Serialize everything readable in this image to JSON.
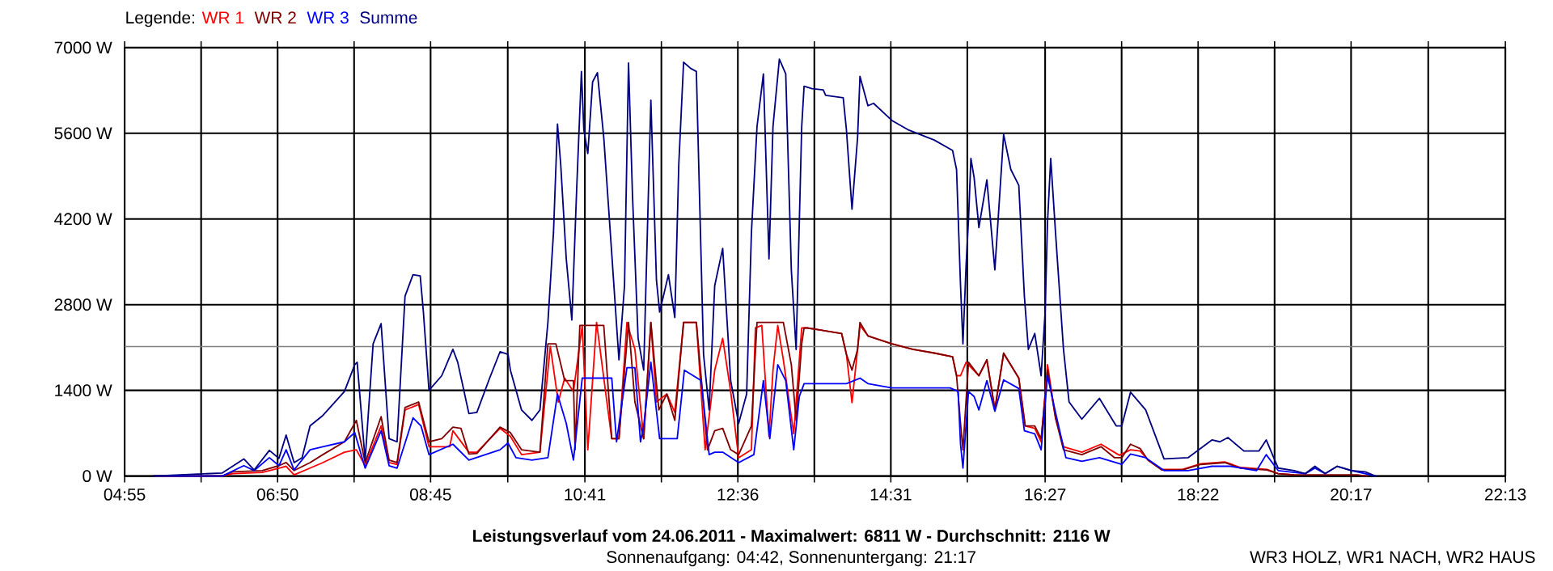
{
  "chart_data": {
    "type": "line",
    "title": "Leistungsverlauf vom 24.06.2011 - Maximalwert: 6811 W - Durchschnitt: 2116 W",
    "subtitle": "Sonnenaufgang: 04:42, Sonnenuntergang: 21:17",
    "annotations": [
      "WR3 HOLZ, WR1 NACH, WR2 HAUS"
    ],
    "legend_title": "Legende:",
    "legend": "top left",
    "grid": true,
    "marker": "none",
    "xlim": [
      4.9167,
      22.2167
    ],
    "ylim": [
      0,
      7000
    ],
    "xticks": [
      {
        "value": 4.9167,
        "label": "04:55"
      },
      {
        "value": 5.875,
        "label": null
      },
      {
        "value": 6.8333,
        "label": "06:50"
      },
      {
        "value": 7.7917,
        "label": null
      },
      {
        "value": 8.75,
        "label": "08:45"
      },
      {
        "value": 9.7167,
        "label": null
      },
      {
        "value": 10.6833,
        "label": "10:41"
      },
      {
        "value": 11.6417,
        "label": null
      },
      {
        "value": 12.6,
        "label": "12:36"
      },
      {
        "value": 13.5583,
        "label": null
      },
      {
        "value": 14.5167,
        "label": "14:31"
      },
      {
        "value": 15.475,
        "label": null
      },
      {
        "value": 16.45,
        "label": "16:27"
      },
      {
        "value": 17.4083,
        "label": null
      },
      {
        "value": 18.3667,
        "label": "18:22"
      },
      {
        "value": 19.325,
        "label": null
      },
      {
        "value": 20.2833,
        "label": "20:17"
      },
      {
        "value": 21.25,
        "label": null
      },
      {
        "value": 22.2167,
        "label": "22:13"
      }
    ],
    "yticks": [
      {
        "value": 0,
        "label": "0 W"
      },
      {
        "value": 1400,
        "label": "1400 W"
      },
      {
        "value": 2800,
        "label": "2800 W"
      },
      {
        "value": 4200,
        "label": "4200 W"
      },
      {
        "value": 5600,
        "label": "5600 W"
      },
      {
        "value": 7000,
        "label": "7000 W"
      }
    ],
    "ref_lines": [
      {
        "axis": "y",
        "value": 2116,
        "color": "#808080"
      }
    ],
    "series": [
      {
        "name": "WR 1",
        "color": "#ff0000",
        "x": [
          5.27,
          6.14,
          6.27,
          6.64,
          6.85,
          6.94,
          7.04,
          7.24,
          7.4,
          7.67,
          7.82,
          7.93,
          8.13,
          8.23,
          8.33,
          8.43,
          8.6,
          8.73,
          8.99,
          9.03,
          9.23,
          9.33,
          9.62,
          9.75,
          9.89,
          10.12,
          10.25,
          10.35,
          10.43,
          10.54,
          10.65,
          10.72,
          10.83,
          10.95,
          11.02,
          11.11,
          11.21,
          11.31,
          11.42,
          11.51,
          11.58,
          11.71,
          11.81,
          11.92,
          12.08,
          12.19,
          12.31,
          12.41,
          12.51,
          12.61,
          12.77,
          12.82,
          12.9,
          12.99,
          13.04,
          13.1,
          13.17,
          13.3,
          13.4,
          13.47,
          13.9,
          13.96,
          14.03,
          14.1,
          14.13,
          14.23,
          14.53,
          14.79,
          15.06,
          15.29,
          15.34,
          15.39,
          15.46,
          15.62,
          15.72,
          15.82,
          15.93,
          16.12,
          16.2,
          16.32,
          16.4,
          16.48,
          16.58,
          16.68,
          16.91,
          17.15,
          17.38,
          17.52,
          17.64,
          17.74,
          17.91,
          18.17,
          18.4,
          18.7,
          18.9,
          19.23,
          19.37,
          19.57
        ],
        "values": [
          0,
          0,
          40,
          60,
          130,
          160,
          20,
          130,
          220,
          390,
          430,
          170,
          820,
          220,
          190,
          1080,
          1170,
          480,
          480,
          740,
          390,
          390,
          780,
          650,
          350,
          390,
          2120,
          1210,
          1600,
          1380,
          2460,
          430,
          2510,
          1300,
          610,
          610,
          2510,
          2070,
          610,
          2510,
          1210,
          1340,
          1040,
          2510,
          2510,
          430,
          1730,
          2250,
          1380,
          300,
          430,
          2420,
          2460,
          650,
          1730,
          2460,
          1900,
          690,
          2420,
          2420,
          2330,
          1990,
          1200,
          2070,
          2460,
          2290,
          2160,
          2070,
          2010,
          1950,
          1640,
          1640,
          1860,
          1640,
          1900,
          1100,
          2000,
          1600,
          820,
          780,
          560,
          1820,
          950,
          480,
          390,
          520,
          340,
          430,
          410,
          260,
          110,
          110,
          200,
          230,
          140,
          110,
          40,
          20
        ]
      },
      {
        "name": "WR 2",
        "color": "#800000",
        "x": [
          5.27,
          6.14,
          6.27,
          6.64,
          6.85,
          6.94,
          7.04,
          7.24,
          7.4,
          7.67,
          7.82,
          7.93,
          8.13,
          8.23,
          8.33,
          8.43,
          8.6,
          8.73,
          8.89,
          9.03,
          9.13,
          9.23,
          9.33,
          9.62,
          9.75,
          9.89,
          10.12,
          10.22,
          10.32,
          10.43,
          10.54,
          10.56,
          10.62,
          10.92,
          11.02,
          11.11,
          11.23,
          11.31,
          11.42,
          11.51,
          11.61,
          11.71,
          11.81,
          11.92,
          12.08,
          12.22,
          12.31,
          12.41,
          12.51,
          12.61,
          12.77,
          12.84,
          13.17,
          13.27,
          13.33,
          13.4,
          13.43,
          13.47,
          13.9,
          13.96,
          14.03,
          14.1,
          14.13,
          14.23,
          14.53,
          14.79,
          15.06,
          15.29,
          15.34,
          15.39,
          15.42,
          15.49,
          15.62,
          15.72,
          15.82,
          15.93,
          16.12,
          16.2,
          16.32,
          16.4,
          16.48,
          16.58,
          16.68,
          16.91,
          17.15,
          17.32,
          17.41,
          17.52,
          17.64,
          17.74,
          17.91,
          18.17,
          18.4,
          18.7,
          18.9,
          19.23,
          19.37,
          19.57,
          19.9,
          20.36,
          20.49
        ],
        "values": [
          0,
          0,
          70,
          90,
          170,
          220,
          90,
          220,
          350,
          560,
          910,
          220,
          970,
          260,
          220,
          1120,
          1210,
          560,
          610,
          800,
          780,
          360,
          370,
          800,
          710,
          430,
          390,
          2160,
          2160,
          1560,
          1560,
          430,
          2460,
          2460,
          610,
          610,
          2510,
          1210,
          610,
          2510,
          1080,
          1340,
          910,
          2510,
          2510,
          430,
          740,
          780,
          430,
          350,
          820,
          2510,
          2510,
          1820,
          910,
          2160,
          2420,
          2420,
          2330,
          1990,
          1730,
          2070,
          2510,
          2290,
          2160,
          2070,
          2010,
          1950,
          1640,
          860,
          430,
          1860,
          1640,
          1900,
          1080,
          2010,
          1600,
          820,
          820,
          610,
          1730,
          950,
          430,
          350,
          480,
          300,
          300,
          520,
          450,
          260,
          100,
          100,
          190,
          220,
          130,
          100,
          40,
          20,
          20,
          20,
          0
        ]
      },
      {
        "name": "WR 3",
        "color": "#0000ff",
        "x": [
          5.27,
          6.14,
          6.41,
          6.54,
          6.73,
          6.85,
          6.94,
          7.04,
          7.24,
          7.4,
          7.67,
          7.8,
          7.93,
          8.13,
          8.23,
          8.33,
          8.53,
          8.63,
          8.73,
          9.03,
          9.23,
          9.62,
          9.72,
          9.82,
          10.02,
          10.22,
          10.34,
          10.45,
          10.54,
          10.65,
          11.02,
          11.08,
          11.21,
          11.31,
          11.38,
          11.42,
          11.51,
          11.62,
          11.84,
          11.93,
          12.14,
          12.24,
          12.31,
          12.41,
          12.61,
          12.8,
          12.92,
          13.0,
          13.1,
          13.2,
          13.3,
          13.37,
          13.43,
          13.67,
          13.96,
          14.13,
          14.23,
          14.53,
          15.26,
          15.36,
          15.39,
          15.42,
          15.49,
          15.56,
          15.62,
          15.72,
          15.82,
          15.93,
          16.12,
          16.19,
          16.32,
          16.4,
          16.48,
          16.58,
          16.71,
          16.91,
          17.13,
          17.41,
          17.52,
          17.71,
          17.94,
          18.24,
          18.54,
          18.77,
          19.1,
          19.22,
          19.37,
          19.71,
          19.83,
          19.96,
          20.11,
          20.29,
          20.46,
          20.59
        ],
        "values": [
          0,
          0,
          170,
          90,
          300,
          170,
          430,
          100,
          430,
          480,
          560,
          710,
          130,
          740,
          170,
          130,
          950,
          820,
          350,
          520,
          260,
          430,
          540,
          300,
          260,
          300,
          1340,
          860,
          260,
          1600,
          1600,
          560,
          1770,
          1770,
          560,
          820,
          1860,
          610,
          610,
          1730,
          1560,
          350,
          390,
          390,
          220,
          350,
          1560,
          610,
          1820,
          1560,
          430,
          1300,
          1510,
          1510,
          1510,
          1600,
          1510,
          1440,
          1440,
          1380,
          520,
          130,
          1380,
          1300,
          1080,
          1560,
          1060,
          1570,
          1430,
          740,
          690,
          430,
          1640,
          1040,
          300,
          240,
          300,
          190,
          360,
          300,
          90,
          90,
          160,
          160,
          90,
          350,
          90,
          40,
          130,
          40,
          160,
          90,
          40,
          0
        ]
      },
      {
        "name": "Summe",
        "color": "#000080",
        "x": [
          5.27,
          6.14,
          6.41,
          6.54,
          6.73,
          6.85,
          6.94,
          7.04,
          7.14,
          7.24,
          7.4,
          7.67,
          7.8,
          7.83,
          7.93,
          8.03,
          8.13,
          8.23,
          8.33,
          8.43,
          8.53,
          8.62,
          8.66,
          8.73,
          8.89,
          9.03,
          9.09,
          9.23,
          9.33,
          9.49,
          9.62,
          9.72,
          9.75,
          9.89,
          10.02,
          10.12,
          10.22,
          10.29,
          10.34,
          10.38,
          10.45,
          10.52,
          10.58,
          10.64,
          10.67,
          10.72,
          10.78,
          10.84,
          10.92,
          11.02,
          11.11,
          11.18,
          11.23,
          11.28,
          11.35,
          11.42,
          11.51,
          11.58,
          11.62,
          11.66,
          11.73,
          11.81,
          11.86,
          11.92,
          12.01,
          12.08,
          12.17,
          12.24,
          12.31,
          12.41,
          12.51,
          12.61,
          12.71,
          12.77,
          12.84,
          12.92,
          12.99,
          13.04,
          13.12,
          13.2,
          13.27,
          13.33,
          13.4,
          13.43,
          13.53,
          13.67,
          13.7,
          13.92,
          13.96,
          14.03,
          14.1,
          14.13,
          14.23,
          14.3,
          14.53,
          14.73,
          15.06,
          15.29,
          15.34,
          15.39,
          15.42,
          15.46,
          15.49,
          15.52,
          15.56,
          15.62,
          15.72,
          15.82,
          15.93,
          16.02,
          16.12,
          16.19,
          16.24,
          16.32,
          16.4,
          16.45,
          16.48,
          16.52,
          16.58,
          16.68,
          16.75,
          16.91,
          17.13,
          17.34,
          17.41,
          17.52,
          17.71,
          17.94,
          18.24,
          18.54,
          18.64,
          18.74,
          18.94,
          19.13,
          19.22,
          19.37,
          19.57,
          19.71,
          19.83,
          19.96,
          20.11,
          20.29,
          20.46,
          20.59
        ],
        "values": [
          0,
          50,
          280,
          100,
          420,
          290,
          670,
          220,
          300,
          820,
          990,
          1380,
          1820,
          1860,
          260,
          2160,
          2490,
          610,
          560,
          2940,
          3290,
          3270,
          2680,
          1400,
          1640,
          2070,
          1860,
          1020,
          1040,
          1600,
          2030,
          1990,
          1730,
          1080,
          910,
          1080,
          2510,
          3980,
          5750,
          5100,
          3550,
          2550,
          4670,
          6610,
          5660,
          5270,
          6440,
          6590,
          5530,
          3630,
          1900,
          3110,
          6750,
          4580,
          2250,
          1730,
          6140,
          3200,
          2680,
          2900,
          3290,
          2590,
          5100,
          6760,
          6660,
          6610,
          1990,
          1080,
          3110,
          3720,
          1560,
          860,
          1340,
          3980,
          5710,
          6570,
          3550,
          5710,
          6811,
          6570,
          3370,
          2070,
          5710,
          6370,
          6330,
          6310,
          6220,
          6180,
          5660,
          4360,
          5530,
          6530,
          6050,
          6090,
          5810,
          5660,
          5490,
          5320,
          5010,
          3110,
          2160,
          3460,
          4190,
          5190,
          4880,
          4060,
          4840,
          3370,
          5580,
          5010,
          4750,
          2940,
          2070,
          2330,
          1640,
          2680,
          4150,
          5190,
          3980,
          2070,
          1210,
          930,
          1270,
          820,
          820,
          1370,
          1080,
          280,
          300,
          590,
          560,
          630,
          410,
          410,
          590,
          130,
          90,
          40,
          160,
          40,
          160,
          90,
          70,
          0
        ]
      }
    ]
  }
}
